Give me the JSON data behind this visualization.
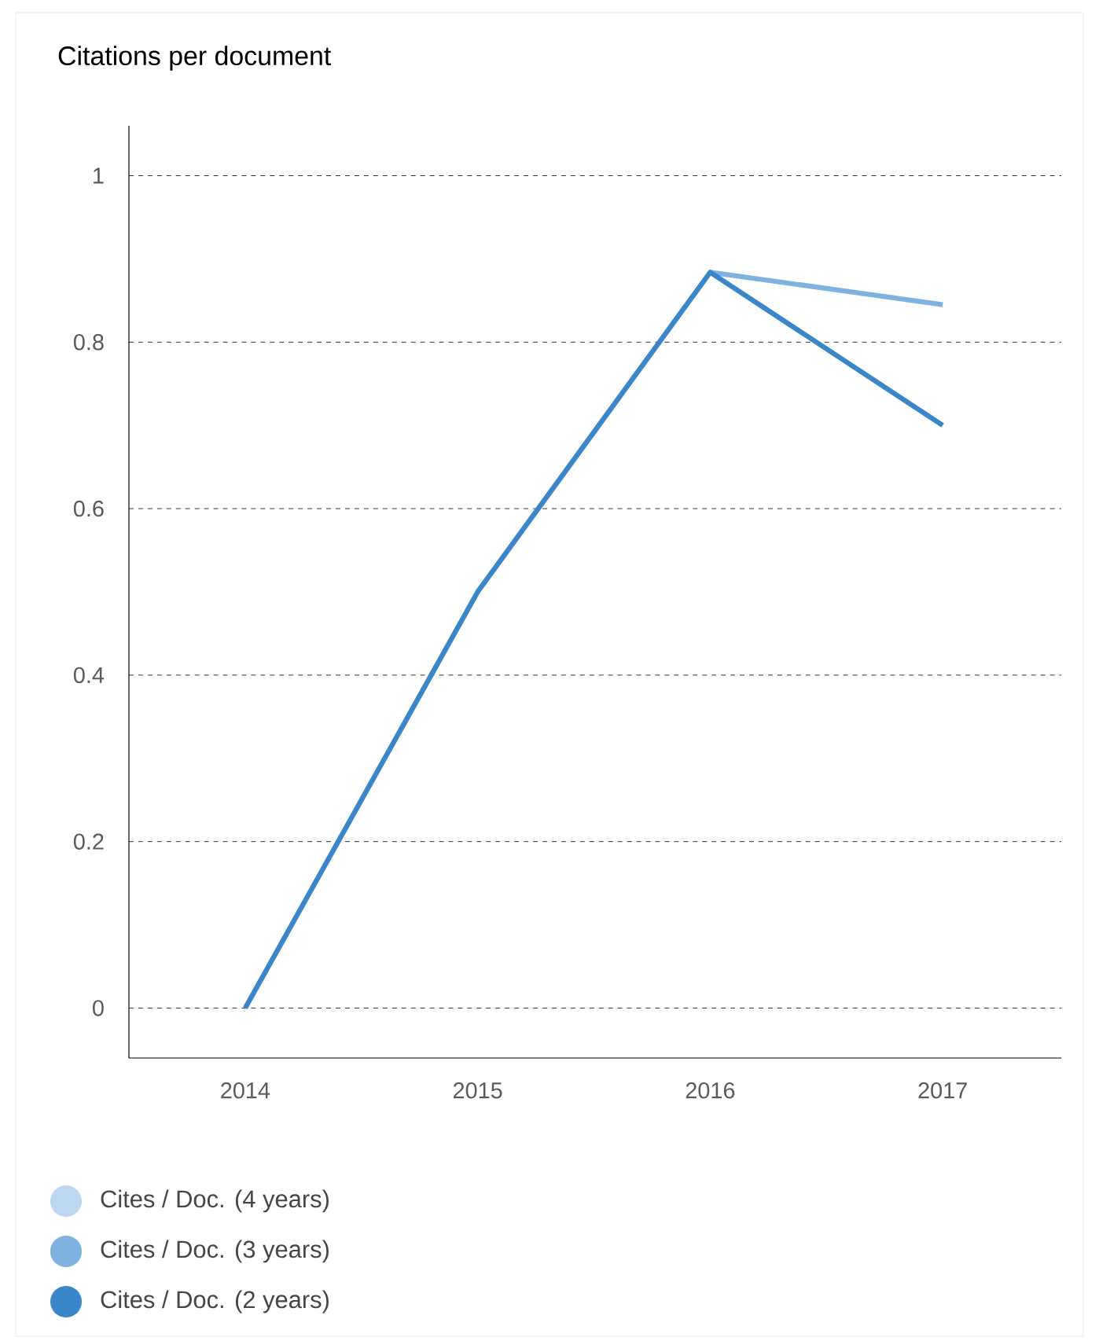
{
  "chart_data": {
    "type": "line",
    "title": "Citations per document",
    "categories": [
      "2014",
      "2015",
      "2016",
      "2017"
    ],
    "series": [
      {
        "name": "Cites / Doc. (4 years)",
        "color": "#bcd8f0",
        "values": [
          null,
          null,
          null,
          null
        ]
      },
      {
        "name": "Cites / Doc. (3 years)",
        "color": "#7fb2e0",
        "values": [
          null,
          null,
          0.884,
          0.845
        ]
      },
      {
        "name": "Cites / Doc. (2 years)",
        "color": "#3a86c8",
        "values": [
          0,
          0.5,
          0.884,
          0.7
        ]
      }
    ],
    "ylim": [
      -0.06,
      1.06
    ],
    "yticks": [
      0,
      0.2,
      0.4,
      0.6,
      0.8,
      1
    ],
    "grid": "y",
    "legend": "bottom",
    "marker": "none",
    "line_style": "solid"
  }
}
